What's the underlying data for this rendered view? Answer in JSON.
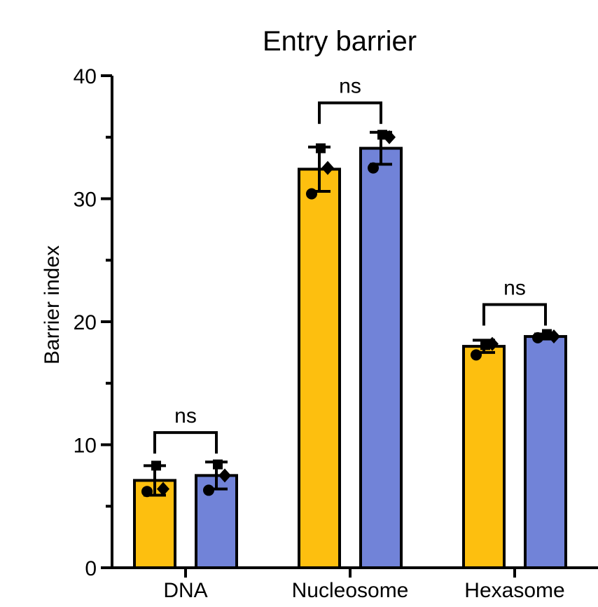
{
  "chart_data": {
    "type": "bar",
    "title": "Entry barrier",
    "ylabel": "Barrier index",
    "xlabel": "",
    "ylim": [
      0,
      40
    ],
    "yticks": [
      0,
      10,
      20,
      30,
      40
    ],
    "grid": false,
    "legend": "none",
    "categories": [
      "DNA",
      "Nucleosome",
      "Hexasome"
    ],
    "series": [
      {
        "color": "#FDBF0F",
        "values": [
          7.1,
          32.4,
          18.0
        ],
        "errors": [
          1.2,
          1.8,
          0.5
        ],
        "points": [
          [
            6.2,
            8.3,
            6.4
          ],
          [
            30.4,
            34.1,
            32.5
          ],
          [
            17.3,
            18.1,
            18.2
          ]
        ]
      },
      {
        "color": "#7183D8",
        "values": [
          7.5,
          34.1,
          18.8
        ],
        "errors": [
          1.1,
          1.3,
          0.2
        ],
        "points": [
          [
            6.3,
            8.4,
            7.5
          ],
          [
            32.5,
            35.2,
            35.0
          ],
          [
            18.7,
            19.0,
            18.8
          ]
        ]
      }
    ],
    "annotations": [
      "ns",
      "ns",
      "ns"
    ]
  }
}
